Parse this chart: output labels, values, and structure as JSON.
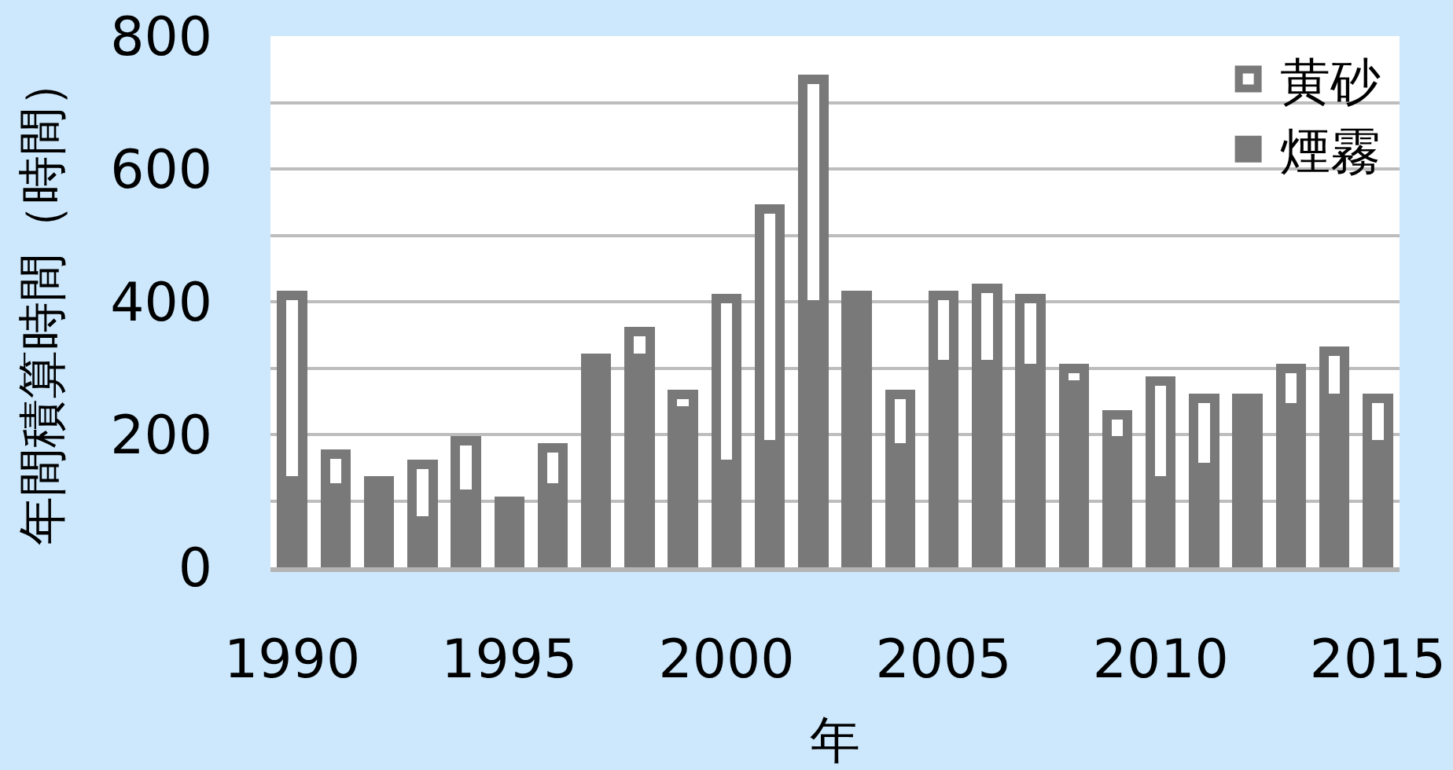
{
  "chart_data": {
    "type": "bar",
    "stacked": true,
    "xlabel": "年",
    "ylabel": "年間積算時間（時間）",
    "x": [
      1990,
      1991,
      1992,
      1993,
      1994,
      1995,
      1996,
      1997,
      1998,
      1999,
      2000,
      2001,
      2002,
      2003,
      2004,
      2005,
      2006,
      2007,
      2008,
      2009,
      2010,
      2011,
      2012,
      2013,
      2014,
      2015
    ],
    "series": [
      {
        "name": "煙霧",
        "color": "#797979",
        "values": [
          130,
          120,
          130,
          70,
          110,
          100,
          120,
          315,
          315,
          235,
          155,
          185,
          395,
          410,
          180,
          305,
          305,
          300,
          275,
          190,
          130,
          150,
          255,
          240,
          255,
          185
        ]
      },
      {
        "name": "黄砂",
        "color": "#ffffff",
        "values": [
          280,
          50,
          0,
          85,
          80,
          0,
          60,
          0,
          40,
          25,
          250,
          355,
          340,
          0,
          80,
          105,
          115,
          105,
          25,
          40,
          150,
          105,
          0,
          60,
          70,
          70
        ]
      }
    ],
    "xlim": [
      1989.5,
      2015.5
    ],
    "xticks": [
      1990,
      1995,
      2000,
      2005,
      2010,
      2015
    ],
    "ylim": [
      0,
      800
    ],
    "yticks": [
      0,
      {
        "value": 100,
        "label": null
      },
      200,
      {
        "value": 300,
        "label": null
      },
      400,
      {
        "value": 500,
        "label": null
      },
      600,
      {
        "value": 700,
        "label": null
      },
      800
    ],
    "grid": "y",
    "legend": "top right"
  }
}
